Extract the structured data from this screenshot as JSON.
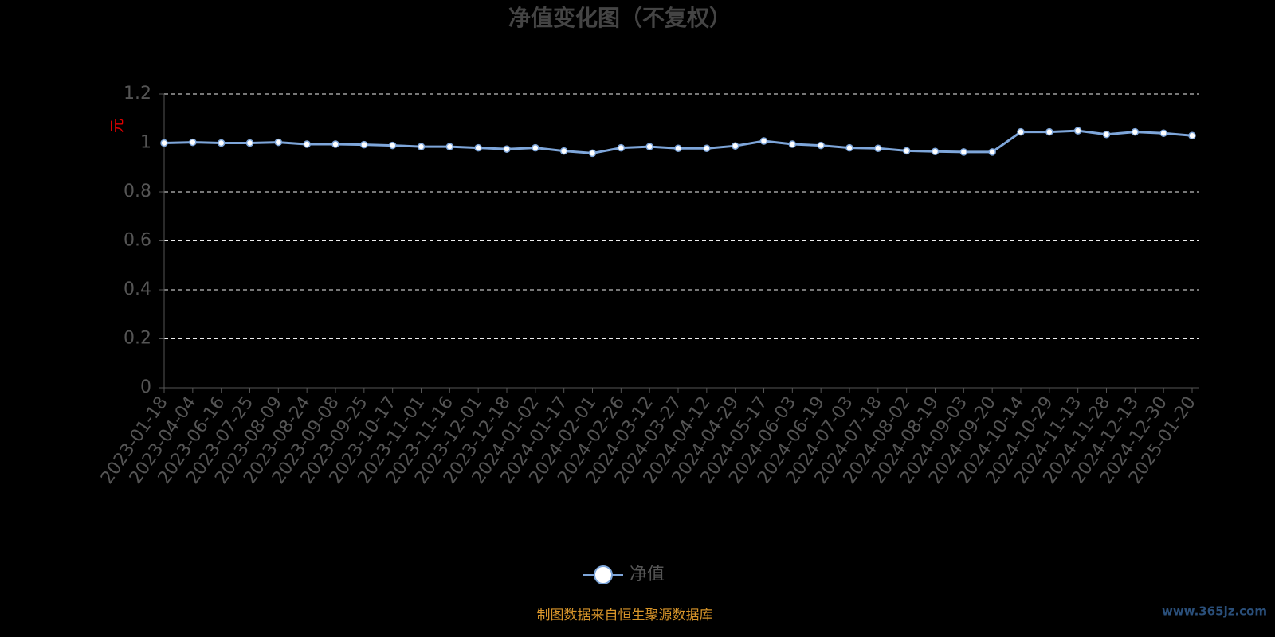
{
  "chart_data": {
    "type": "line",
    "title": "净值变化图（不复权）",
    "y_axis_label": "元",
    "categories": [
      "2023-01-18",
      "2023-04-04",
      "2023-06-16",
      "2023-07-25",
      "2023-08-09",
      "2023-08-24",
      "2023-09-08",
      "2023-09-25",
      "2023-10-17",
      "2023-11-01",
      "2023-11-16",
      "2023-12-01",
      "2023-12-18",
      "2024-01-02",
      "2024-01-17",
      "2024-02-01",
      "2024-02-26",
      "2024-03-12",
      "2024-03-27",
      "2024-04-12",
      "2024-04-29",
      "2024-05-17",
      "2024-06-03",
      "2024-06-19",
      "2024-07-03",
      "2024-07-18",
      "2024-08-02",
      "2024-08-19",
      "2024-09-03",
      "2024-09-20",
      "2024-10-14",
      "2024-10-29",
      "2024-11-13",
      "2024-11-28",
      "2024-12-13",
      "2024-12-30",
      "2025-01-20"
    ],
    "series": [
      {
        "name": "净值",
        "color": "#7ea6da",
        "values": [
          1.0,
          1.003,
          1.0,
          1.0,
          1.003,
          0.995,
          0.995,
          0.993,
          0.99,
          0.985,
          0.985,
          0.98,
          0.975,
          0.98,
          0.967,
          0.958,
          0.98,
          0.985,
          0.978,
          0.978,
          0.988,
          1.008,
          0.995,
          0.99,
          0.98,
          0.978,
          0.968,
          0.965,
          0.963,
          0.963,
          1.045,
          1.045,
          1.05,
          1.035,
          1.045,
          1.04,
          1.03
        ]
      }
    ],
    "ylim": [
      0,
      1.2
    ],
    "yticks": [
      0,
      0.2,
      0.4,
      0.6,
      0.8,
      1,
      1.2
    ],
    "grid": true,
    "legend_position": "bottom",
    "footer": "制图数据来自恒生聚源数据库",
    "watermark": "www.365jz.com"
  }
}
